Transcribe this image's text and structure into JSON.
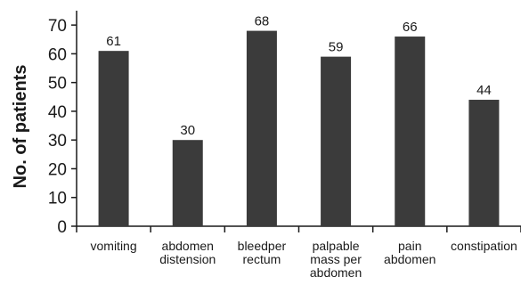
{
  "chart_data": {
    "type": "bar",
    "title": "",
    "xlabel": "",
    "ylabel": "No. of patients",
    "ylim": [
      0,
      75
    ],
    "yticks": [
      0,
      10,
      20,
      30,
      40,
      50,
      60,
      70
    ],
    "grid": false,
    "legend": "none",
    "categories": [
      [
        "vomiting"
      ],
      [
        "abdomen",
        "distension"
      ],
      [
        "bleedper",
        "rectum"
      ],
      [
        "palpable",
        "mass per",
        "abdomen"
      ],
      [
        "pain",
        "abdomen"
      ],
      [
        "constipation"
      ]
    ],
    "values": [
      61,
      30,
      68,
      59,
      66,
      44
    ],
    "bar_color": "#3b3b3b",
    "axis_color": "#1a1a1a"
  }
}
